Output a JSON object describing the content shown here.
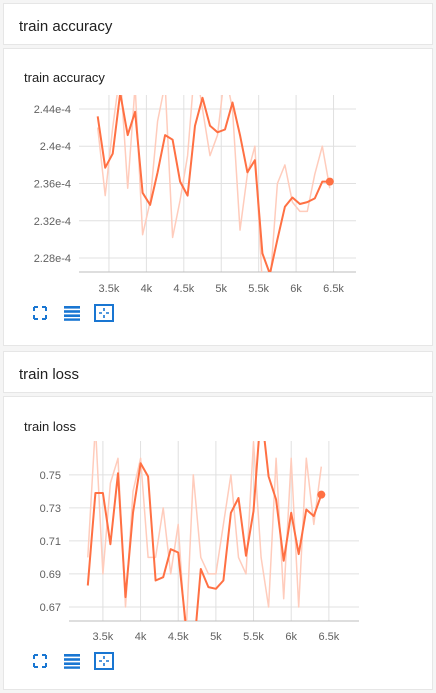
{
  "sections": [
    {
      "header": "train accuracy",
      "card_title": "train accuracy",
      "toolbar": [
        "fullscreen-icon",
        "data-table-icon",
        "fit-domain-icon"
      ]
    },
    {
      "header": "train loss",
      "card_title": "train loss",
      "toolbar": [
        "fullscreen-icon",
        "data-table-icon",
        "fit-domain-icon"
      ]
    }
  ],
  "colors": {
    "line": "#ff7043",
    "raw": "#ffccbc",
    "accent": "#1976d2",
    "grid": "#e0e0e0"
  },
  "chart_data": [
    {
      "type": "line",
      "title": "train accuracy",
      "xlim": [
        3100,
        6800
      ],
      "ylim": [
        0.0002265,
        0.0002455
      ],
      "xticks": [
        3500,
        4000,
        4500,
        5000,
        5500,
        6000,
        6500
      ],
      "xtick_labels": [
        "3.5k",
        "4k",
        "4.5k",
        "5k",
        "5.5k",
        "6k",
        "6.5k"
      ],
      "yticks": [
        0.000228,
        0.000232,
        0.000236,
        0.00024,
        0.000244
      ],
      "ytick_labels": [
        "2.28e-4",
        "2.32e-4",
        "2.36e-4",
        "2.4e-4",
        "2.44e-4"
      ],
      "series": [
        {
          "role": "smoothed",
          "x": [
            3350,
            3450,
            3550,
            3650,
            3750,
            3850,
            3950,
            4050,
            4150,
            4250,
            4350,
            4450,
            4550,
            4650,
            4750,
            4850,
            4950,
            5050,
            5150,
            5250,
            5350,
            5450,
            5550,
            5650,
            5750,
            5850,
            5950,
            6050,
            6150,
            6250,
            6350,
            6450
          ],
          "y": [
            0.0002432,
            0.0002377,
            0.0002392,
            0.0002457,
            0.0002412,
            0.0002437,
            0.000235,
            0.0002337,
            0.0002372,
            0.0002412,
            0.0002407,
            0.0002362,
            0.0002347,
            0.0002422,
            0.0002452,
            0.0002422,
            0.0002415,
            0.0002418,
            0.0002447,
            0.0002412,
            0.0002372,
            0.0002385,
            0.0002285,
            0.0002263,
            0.00023,
            0.0002335,
            0.0002345,
            0.0002338,
            0.000234,
            0.0002344,
            0.0002362,
            0.0002362
          ]
        },
        {
          "role": "raw",
          "x": [
            3350,
            3450,
            3550,
            3650,
            3750,
            3850,
            3950,
            4050,
            4150,
            4250,
            4350,
            4450,
            4550,
            4650,
            4750,
            4850,
            4950,
            5050,
            5150,
            5250,
            5350,
            5450,
            5550,
            5650,
            5750,
            5850,
            5950,
            6050,
            6150,
            6250,
            6350,
            6450
          ],
          "y": [
            0.000242,
            0.0002347,
            0.000242,
            0.000248,
            0.0002355,
            0.0002465,
            0.0002305,
            0.000234,
            0.0002427,
            0.0002467,
            0.0002302,
            0.0002342,
            0.000239,
            0.000249,
            0.000244,
            0.000239,
            0.0002412,
            0.000248,
            0.000244,
            0.000231,
            0.000237,
            0.00024,
            0.000225,
            0.000225,
            0.000236,
            0.000238,
            0.000234,
            0.000233,
            0.000233,
            0.000237,
            0.00024,
            0.0002355
          ]
        }
      ],
      "last_point": {
        "x": 6450,
        "y": 0.0002362
      }
    },
    {
      "type": "line",
      "title": "train loss",
      "xlim": [
        3050,
        6900
      ],
      "ylim": [
        0.6615,
        0.7705
      ],
      "xticks": [
        3500,
        4000,
        4500,
        5000,
        5500,
        6000,
        6500
      ],
      "xtick_labels": [
        "3.5k",
        "4k",
        "4.5k",
        "5k",
        "5.5k",
        "6k",
        "6.5k"
      ],
      "yticks": [
        0.67,
        0.69,
        0.71,
        0.73,
        0.75
      ],
      "ytick_labels": [
        "0.67",
        "0.69",
        "0.71",
        "0.73",
        "0.75"
      ],
      "series": [
        {
          "role": "smoothed",
          "x": [
            3300,
            3400,
            3500,
            3600,
            3700,
            3800,
            3900,
            4000,
            4100,
            4200,
            4300,
            4400,
            4500,
            4600,
            4700,
            4800,
            4900,
            5000,
            5100,
            5200,
            5300,
            5400,
            5500,
            5600,
            5700,
            5800,
            5900,
            6000,
            6100,
            6200,
            6300,
            6400
          ],
          "y": [
            0.683,
            0.739,
            0.739,
            0.708,
            0.751,
            0.676,
            0.727,
            0.757,
            0.749,
            0.686,
            0.688,
            0.705,
            0.703,
            0.659,
            0.64,
            0.693,
            0.682,
            0.681,
            0.686,
            0.727,
            0.736,
            0.701,
            0.728,
            0.79,
            0.749,
            0.735,
            0.698,
            0.727,
            0.702,
            0.729,
            0.725,
            0.738
          ]
        },
        {
          "role": "raw",
          "x": [
            3300,
            3400,
            3500,
            3600,
            3700,
            3800,
            3900,
            4000,
            4100,
            4200,
            4300,
            4400,
            4500,
            4600,
            4700,
            4800,
            4900,
            5000,
            5100,
            5200,
            5300,
            5400,
            5500,
            5600,
            5700,
            5800,
            5900,
            6000,
            6100,
            6200,
            6300,
            6400
          ],
          "y": [
            0.7,
            0.78,
            0.69,
            0.745,
            0.76,
            0.67,
            0.74,
            0.76,
            0.7,
            0.7,
            0.73,
            0.69,
            0.72,
            0.65,
            0.75,
            0.7,
            0.69,
            0.69,
            0.72,
            0.75,
            0.7,
            0.69,
            0.77,
            0.7,
            0.67,
            0.76,
            0.675,
            0.76,
            0.67,
            0.76,
            0.72,
            0.755
          ]
        }
      ],
      "last_point": {
        "x": 6400,
        "y": 0.738
      }
    }
  ]
}
